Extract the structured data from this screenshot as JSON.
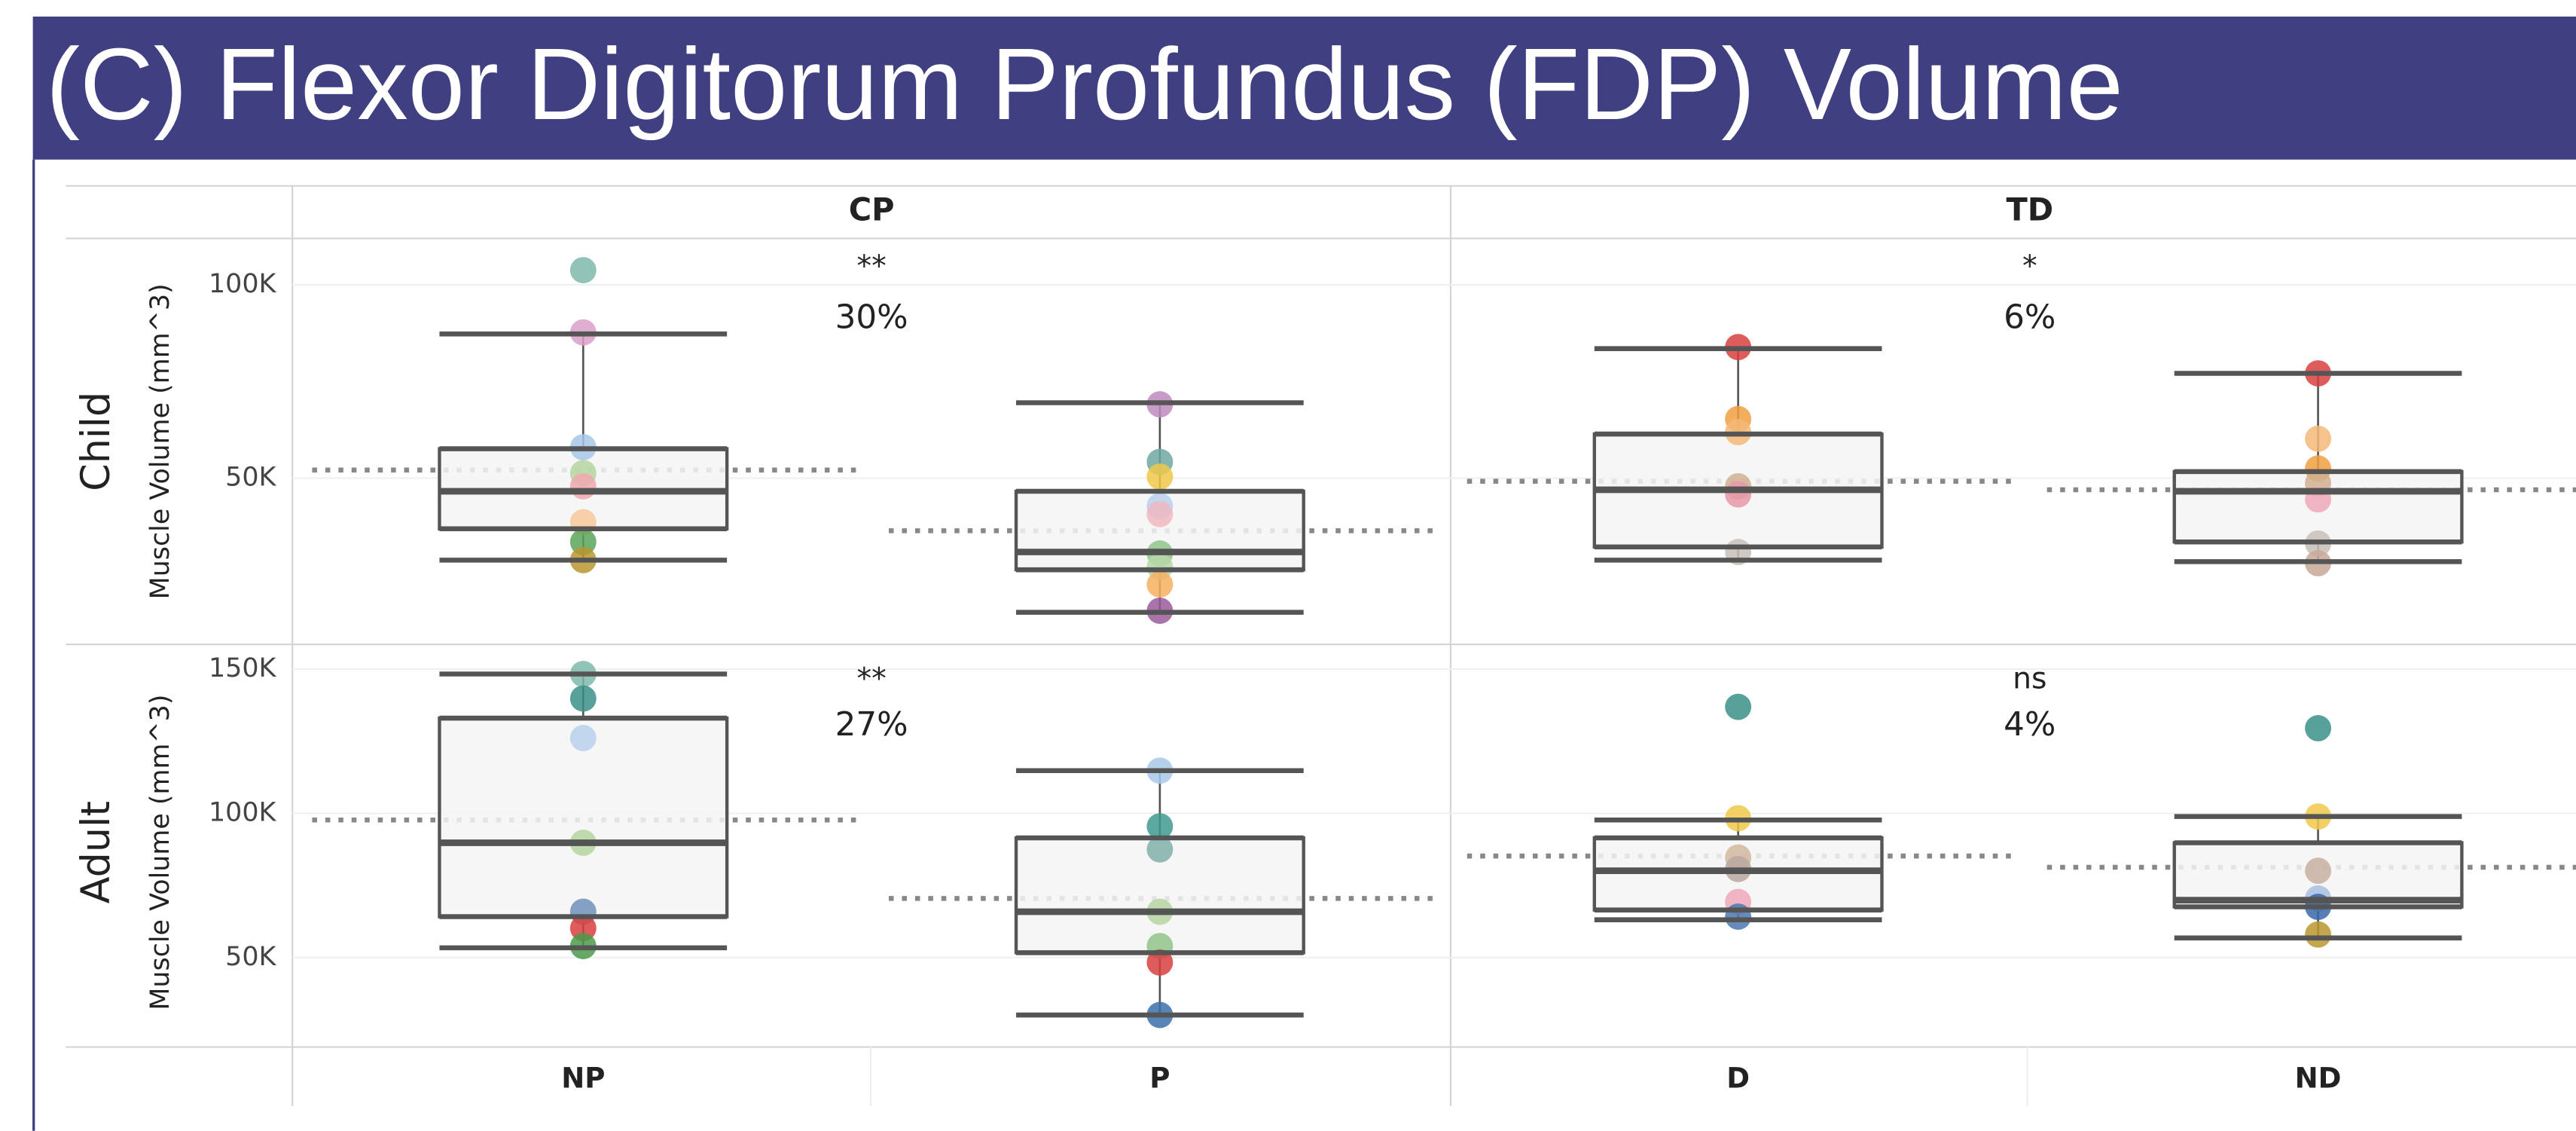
{
  "chart_data": {
    "type": "box",
    "title": "(C) Flexor Digitorum Profundus (FDP) Volume",
    "y_label": "Muscle Volume (mm^3)",
    "categories": [
      "NP",
      "P",
      "D",
      "ND"
    ],
    "columns": [
      {
        "name": "CP"
      },
      {
        "name": "TD"
      }
    ],
    "rows": [
      {
        "name": "Child",
        "ylim": [
          7000,
          112000
        ],
        "yticks": [
          {
            "value": 50000,
            "label": "50K"
          },
          {
            "value": 100000,
            "label": "100K"
          }
        ],
        "annotations": [
          {
            "significance": "**",
            "percent": "30%"
          },
          {
            "significance": "*",
            "percent": "6%"
          }
        ],
        "boxes": [
          {
            "whisker_low": 28800,
            "q1": 36900,
            "median": 46600,
            "q3": 57600,
            "whisker_high": 87300,
            "mean": 52100,
            "points": [
              103800,
              87700,
              58000,
              51300,
              47900,
              38600,
              33500,
              28800
            ],
            "point_colors": [
              "#7fb9ad",
              "#d9a0c8",
              "#a8c8e8",
              "#b5d6a0",
              "#f0a8b0",
              "#f7c89a",
              "#5aa55a",
              "#b8962e"
            ]
          },
          {
            "whisker_low": 15300,
            "q1": 26300,
            "median": 30900,
            "q3": 46600,
            "whisker_high": 69500,
            "mean": 36400,
            "points": [
              69100,
              54200,
              50400,
              42800,
              40700,
              30500,
              27100,
              22500,
              15700
            ],
            "point_colors": [
              "#c08ac0",
              "#6fa8a0",
              "#f0c84a",
              "#b8d0ec",
              "#f0b8c0",
              "#8fc48a",
              "#b8d8a8",
              "#f5b060",
              "#9b5a9b"
            ]
          },
          {
            "whisker_low": 28800,
            "q1": 32200,
            "median": 47000,
            "q3": 61400,
            "whisker_high": 83500,
            "mean": 49200,
            "points": [
              83900,
              65300,
              61900,
              47900,
              45800,
              30900
            ],
            "point_colors": [
              "#d94040",
              "#f0a040",
              "#f5b878",
              "#d0b090",
              "#e898a8",
              "#c8c0b8"
            ]
          },
          {
            "whisker_low": 28400,
            "q1": 33500,
            "median": 46600,
            "q3": 51700,
            "whisker_high": 77100,
            "mean": 47000,
            "points": [
              77100,
              60200,
              52500,
              48700,
              44500,
              33100,
              28000
            ],
            "point_colors": [
              "#d94040",
              "#f5b878",
              "#f0a040",
              "#d0b090",
              "#f0a8b8",
              "#c8c0b8",
              "#c8a898"
            ]
          }
        ]
      },
      {
        "name": "Adult",
        "ylim": [
          19000,
          154000
        ],
        "yticks": [
          {
            "value": 50000,
            "label": "50K"
          },
          {
            "value": 100000,
            "label": "100K"
          },
          {
            "value": 150000,
            "label": "150K"
          }
        ],
        "annotations": [
          {
            "significance": "**",
            "percent": "27%"
          },
          {
            "significance": "ns",
            "percent": "4%"
          }
        ],
        "boxes": [
          {
            "whisker_low": 53400,
            "q1": 64200,
            "median": 89800,
            "q3": 133000,
            "whisker_high": 148300,
            "mean": 97700,
            "points": [
              148300,
              139800,
              126100,
              89800,
              65900,
              60200,
              54000
            ],
            "point_colors": [
              "#7fb9ad",
              "#3a9088",
              "#b8d0ec",
              "#b5d6a0",
              "#7090b8",
              "#d94040",
              "#4a9a4a"
            ]
          },
          {
            "whisker_low": 30100,
            "q1": 51700,
            "median": 65900,
            "q3": 91500,
            "whisker_high": 114800,
            "mean": 70500,
            "points": [
              114800,
              95500,
              87500,
              65900,
              54000,
              48300,
              30100
            ],
            "point_colors": [
              "#a8c8e8",
              "#3f9a90",
              "#7fb0a8",
              "#b5d6a0",
              "#8fc48a",
              "#d94040",
              "#3a70a8"
            ]
          },
          {
            "whisker_low": 63100,
            "q1": 66500,
            "median": 80100,
            "q3": 91500,
            "whisker_high": 97700,
            "mean": 85200,
            "points": [
              136900,
              98300,
              84700,
              80700,
              69300,
              64200
            ],
            "point_colors": [
              "#3a9088",
              "#f0c84a",
              "#d0b8a0",
              "#b8a8a0",
              "#f0a8b8",
              "#4a78b0"
            ]
          },
          {
            "whisker_low": 56800,
            "q1": 67600,
            "median": 69900,
            "q3": 89800,
            "whisker_high": 98900,
            "mean": 81300,
            "points": [
              129500,
              98900,
              80100,
              70500,
              67600,
              58000
            ],
            "point_colors": [
              "#3a9088",
              "#f0c84a",
              "#c8b0a0",
              "#a8c0e0",
              "#3a68a8",
              "#b8962e"
            ]
          }
        ]
      }
    ]
  }
}
